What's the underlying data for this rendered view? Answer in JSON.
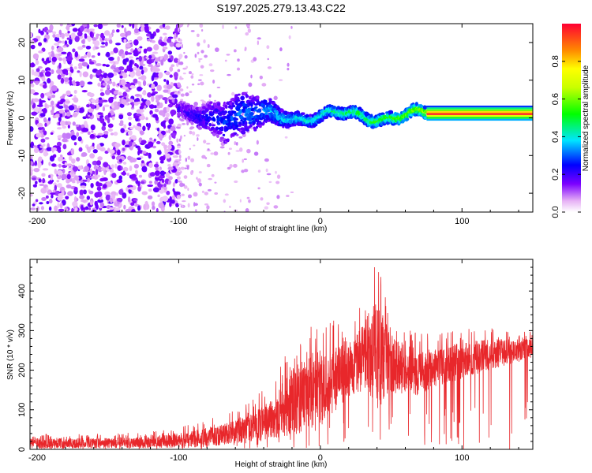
{
  "title": "S197.2025.279.13.43.C22",
  "chart_data": [
    {
      "type": "heatmap",
      "xlabel": "Height of straight line (km)",
      "ylabel": "Frequency (Hz)",
      "xlim": [
        -205,
        150
      ],
      "ylim": [
        -25,
        25
      ],
      "x_ticks": [
        -200,
        -100,
        0,
        100
      ],
      "y_ticks": [
        -20,
        -10,
        0,
        10,
        20
      ],
      "colorbar": {
        "label": "Normalized spectral amplitude",
        "range": [
          0,
          1
        ],
        "ticks": [
          0,
          0.2,
          0.4,
          0.6,
          0.8
        ],
        "tick_labels": [
          "0.0",
          "0.2",
          "0.4",
          "0.6",
          "0.8"
        ]
      },
      "features": [
        {
          "x_range": [
            -205,
            -100
          ],
          "description": "broadband scattered low-amplitude noise"
        },
        {
          "x_range": [
            -100,
            75
          ],
          "center_freq_hz": 0.5,
          "amplitude_max": 0.6
        },
        {
          "x_range": [
            75,
            150
          ],
          "center_freq_hz": 1,
          "amplitude_max": 1.0
        }
      ]
    },
    {
      "type": "line",
      "xlabel": "Height of straight line (km)",
      "ylabel": "SNR (10 * v/v)",
      "xlim": [
        -205,
        150
      ],
      "ylim": [
        0,
        480
      ],
      "x_ticks": [
        -200,
        -100,
        0,
        100
      ],
      "y_ticks": [
        0,
        100,
        200,
        300,
        400
      ],
      "series": [
        {
          "name": "SNR",
          "color": "#e8272b",
          "x": [
            -205,
            -180,
            -150,
            -120,
            -100,
            -80,
            -60,
            -40,
            -30,
            -20,
            -10,
            0,
            10,
            20,
            30,
            38,
            45,
            50,
            60,
            70,
            80,
            100,
            120,
            150
          ],
          "mean": [
            15,
            15,
            16,
            18,
            22,
            30,
            45,
            65,
            90,
            120,
            140,
            160,
            175,
            200,
            230,
            250,
            230,
            215,
            200,
            195,
            205,
            225,
            240,
            255
          ],
          "peak": [
            40,
            38,
            40,
            45,
            55,
            75,
            100,
            150,
            200,
            280,
            300,
            350,
            330,
            320,
            380,
            480,
            420,
            350,
            320,
            300,
            290,
            310,
            310,
            300
          ]
        }
      ]
    }
  ]
}
